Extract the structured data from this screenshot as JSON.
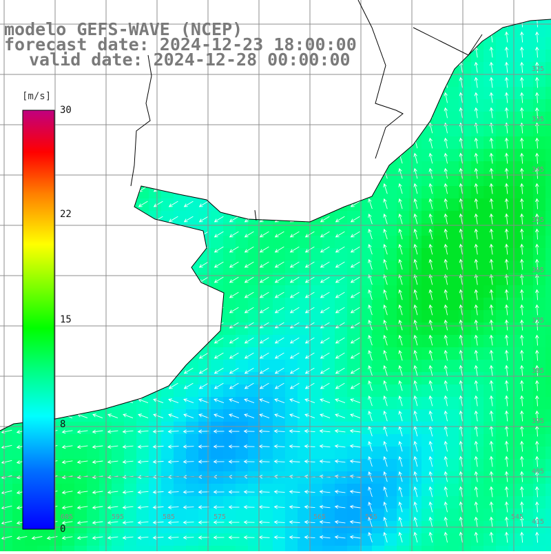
{
  "title": {
    "line1": "modelo GEFS-WAVE (NCEP)",
    "line2": "forecast date: 2024-12-23 18:00:00",
    "line3": "valid date: 2024-12-28 00:00:00"
  },
  "colorbar": {
    "unit": "[m/s]",
    "ticks": [
      "30",
      "22",
      "15",
      "8",
      "0"
    ],
    "tick_values": [
      30,
      22,
      15,
      8,
      0
    ],
    "colors": [
      "#0000ff",
      "#0080ff",
      "#00ffff",
      "#00ff80",
      "#00ff00",
      "#80ff00",
      "#ffff00",
      "#ff8000",
      "#ff0000",
      "#c00080"
    ]
  },
  "map": {
    "latitude_labels": [
      "325",
      "335",
      "345",
      "355",
      "365",
      "375",
      "385",
      "395",
      "405",
      "415"
    ],
    "longitude_labels": [
      "605",
      "595",
      "585",
      "575",
      "565",
      "555",
      "545"
    ],
    "field_palette": {
      "land": "#ffffff",
      "grid": "#8c8c8c",
      "coast": "#000000",
      "arrow": "#ffffff"
    }
  }
}
